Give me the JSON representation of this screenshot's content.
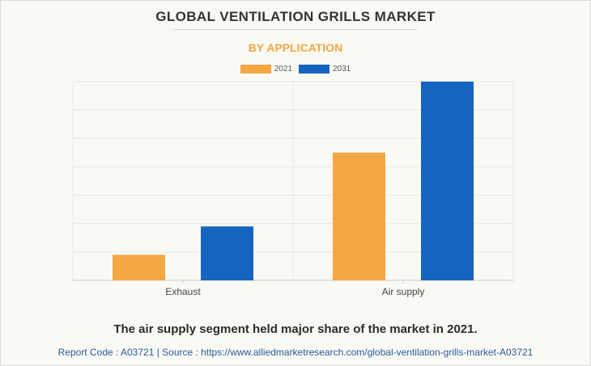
{
  "header": {
    "title": "GLOBAL VENTILATION GRILLS MARKET",
    "subtitle": "BY APPLICATION"
  },
  "colors": {
    "series_2021": "#f4a742",
    "series_2031": "#1565c0",
    "subtitle": "#f4a742",
    "source_text": "#2a5a9a"
  },
  "chart_data": {
    "type": "bar",
    "categories": [
      "Exhaust",
      "Air supply"
    ],
    "series": [
      {
        "name": "2021",
        "values": [
          9,
          45
        ]
      },
      {
        "name": "2031",
        "values": [
          19,
          70
        ]
      }
    ],
    "ylim": [
      0,
      70
    ],
    "grid": true,
    "legend_position": "top-center",
    "xlabel": "",
    "ylabel": ""
  },
  "footer": {
    "caption": "The air supply segment held major share of the market in 2021.",
    "source": "Report Code : A03721  |  Source : https://www.alliedmarketresearch.com/global-ventilation-grills-market-A03721"
  }
}
